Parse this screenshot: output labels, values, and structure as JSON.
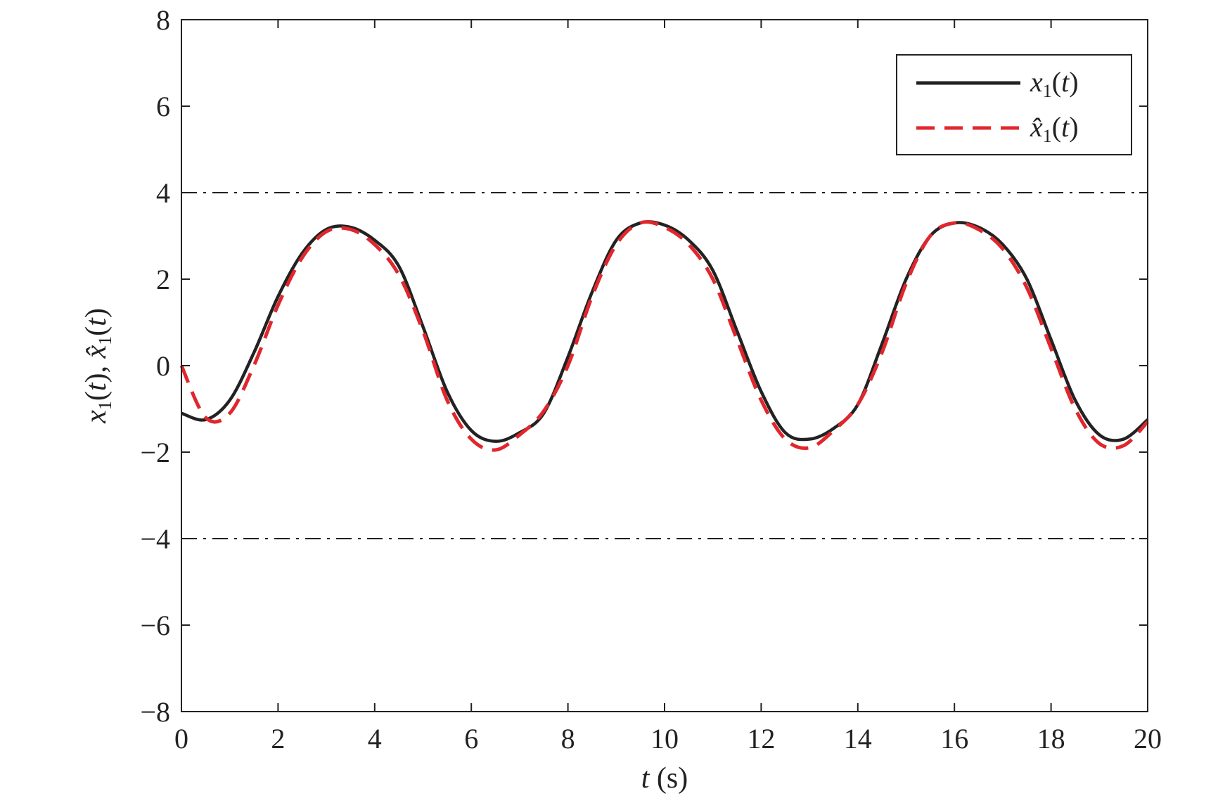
{
  "chart_data": {
    "type": "line",
    "xlabel": "t (s)",
    "ylabel": "x1(t), x̂1(t)",
    "xlim": [
      0,
      20
    ],
    "ylim": [
      -8,
      8
    ],
    "xticks": [
      0,
      2,
      4,
      6,
      8,
      10,
      12,
      14,
      16,
      18,
      20
    ],
    "yticks": [
      -8,
      -6,
      -4,
      -2,
      0,
      2,
      4,
      6,
      8
    ],
    "xtick_labels": [
      "0",
      "2",
      "4",
      "6",
      "8",
      "10",
      "12",
      "14",
      "16",
      "18",
      "20"
    ],
    "ytick_labels": [
      "−8",
      "−6",
      "−4",
      "−2",
      "0",
      "2",
      "4",
      "6",
      "8"
    ],
    "grid": false,
    "legend_position": "top-right",
    "series": [
      {
        "name": "x1(t)",
        "style": "solid",
        "color": "#222222",
        "x": [
          0,
          0.5,
          1,
          1.5,
          2,
          2.5,
          3,
          3.5,
          4,
          4.5,
          5,
          5.5,
          6,
          6.5,
          7,
          7.5,
          8,
          8.5,
          9,
          9.5,
          10,
          10.5,
          11,
          11.5,
          12,
          12.5,
          13,
          13.5,
          14,
          14.5,
          15,
          15.5,
          16,
          16.5,
          17,
          17.5,
          18,
          18.5,
          19,
          19.5,
          20
        ],
        "values": [
          -1.1,
          -1.25,
          -0.8,
          0.3,
          1.6,
          2.6,
          3.15,
          3.2,
          2.9,
          2.3,
          0.9,
          -0.6,
          -1.5,
          -1.75,
          -1.55,
          -1.1,
          0.2,
          1.7,
          2.9,
          3.3,
          3.25,
          2.9,
          2.2,
          0.8,
          -0.6,
          -1.55,
          -1.7,
          -1.45,
          -0.9,
          0.5,
          2.0,
          3.0,
          3.3,
          3.2,
          2.8,
          2.0,
          0.6,
          -0.8,
          -1.6,
          -1.7,
          -1.25
        ]
      },
      {
        "name": "x̂1(t)",
        "style": "dashed",
        "color": "#e0272d",
        "x": [
          0,
          0.5,
          1,
          1.5,
          2,
          2.5,
          3,
          3.5,
          4,
          4.5,
          5,
          5.5,
          6,
          6.5,
          7,
          7.5,
          8,
          8.5,
          9,
          9.5,
          10,
          10.5,
          11,
          11.5,
          12,
          12.5,
          13,
          13.5,
          14,
          14.5,
          15,
          15.5,
          16,
          16.5,
          17,
          17.5,
          18,
          18.5,
          19,
          19.5,
          20
        ],
        "values": [
          0,
          -1.2,
          -1.1,
          0.0,
          1.4,
          2.5,
          3.1,
          3.15,
          2.8,
          2.1,
          0.8,
          -0.8,
          -1.7,
          -1.95,
          -1.6,
          -1.05,
          0.0,
          1.6,
          2.8,
          3.3,
          3.2,
          2.8,
          2.0,
          0.6,
          -0.8,
          -1.7,
          -1.9,
          -1.5,
          -0.9,
          0.3,
          1.9,
          3.0,
          3.3,
          3.15,
          2.7,
          1.8,
          0.4,
          -1.0,
          -1.8,
          -1.85,
          -1.3
        ]
      }
    ],
    "reference_lines": [
      {
        "y": 4,
        "style": "dashdot",
        "color": "#222222"
      },
      {
        "y": -4,
        "style": "dashdot",
        "color": "#222222"
      }
    ]
  }
}
